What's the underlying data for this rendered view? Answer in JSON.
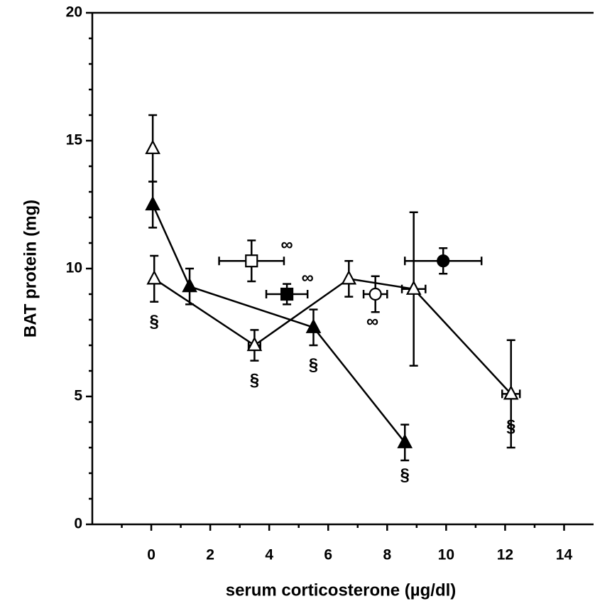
{
  "chart_data": {
    "type": "scatter",
    "xlabel": "serum corticosterone (µg/dl)",
    "ylabel": "BAT protein (mg)",
    "xlim": [
      -2,
      15
    ],
    "ylim": [
      0,
      20
    ],
    "xticks": [
      0,
      2,
      4,
      6,
      8,
      10,
      12,
      14
    ],
    "xminorticks": [
      -1,
      1,
      3,
      5,
      7,
      9,
      11,
      13
    ],
    "yticks": [
      0,
      5,
      10,
      15,
      20
    ],
    "yminorticks": [
      1,
      2,
      3,
      4,
      6,
      7,
      8,
      9,
      11,
      12,
      13,
      14,
      16,
      17,
      18,
      19
    ],
    "series": [
      {
        "marker": "triangle",
        "filled": true,
        "line": true,
        "color": "#000000",
        "x": [
          0.05,
          1.3,
          5.5,
          8.6
        ],
        "values": [
          12.5,
          9.3,
          7.7,
          3.2
        ],
        "errors": [
          0.9,
          0.7,
          0.7,
          0.7
        ],
        "xerrors": [
          null,
          null,
          null,
          null
        ]
      },
      {
        "marker": "triangle",
        "filled": false,
        "line": true,
        "color": "#000000",
        "x": [
          0.1,
          3.5,
          6.7,
          8.9,
          12.2
        ],
        "values": [
          9.6,
          7.0,
          9.6,
          9.2,
          5.1
        ],
        "errors": [
          0.9,
          0.6,
          0.7,
          3.0,
          2.1
        ],
        "xerrors": [
          null,
          0.2,
          null,
          0.4,
          0.3
        ]
      },
      {
        "marker": "triangle",
        "filled": false,
        "line": false,
        "color": "#000000",
        "x": [
          0.05
        ],
        "values": [
          14.7
        ],
        "errors": [
          1.3
        ],
        "xerrors": [
          null
        ]
      },
      {
        "marker": "square",
        "filled": false,
        "line": false,
        "color": "#000000",
        "x": [
          3.4
        ],
        "values": [
          10.3
        ],
        "errors": [
          0.8
        ],
        "xerrors": [
          1.1
        ]
      },
      {
        "marker": "square",
        "filled": true,
        "line": false,
        "color": "#000000",
        "x": [
          4.6
        ],
        "values": [
          9.0
        ],
        "errors": [
          0.4
        ],
        "xerrors": [
          0.7
        ]
      },
      {
        "marker": "circle",
        "filled": false,
        "line": false,
        "color": "#000000",
        "x": [
          7.6
        ],
        "values": [
          9.0
        ],
        "errors": [
          0.7
        ],
        "xerrors": [
          0.4
        ]
      },
      {
        "marker": "circle",
        "filled": true,
        "line": false,
        "color": "#000000",
        "x": [
          9.9
        ],
        "values": [
          10.3
        ],
        "errors": [
          0.5
        ],
        "xerrors": [
          1.3
        ]
      }
    ],
    "annotations": [
      {
        "text": "§",
        "x": 0.1,
        "y": 7.9
      },
      {
        "text": "§",
        "x": 3.5,
        "y": 5.6
      },
      {
        "text": "§",
        "x": 5.5,
        "y": 6.2
      },
      {
        "text": "§",
        "x": 8.6,
        "y": 1.9
      },
      {
        "text": "§",
        "x": 12.2,
        "y": 3.8
      },
      {
        "text": "∞",
        "x": 4.6,
        "y": 10.9
      },
      {
        "text": "∞",
        "x": 5.3,
        "y": 9.6
      },
      {
        "text": "∞",
        "x": 7.5,
        "y": 7.9
      }
    ]
  }
}
